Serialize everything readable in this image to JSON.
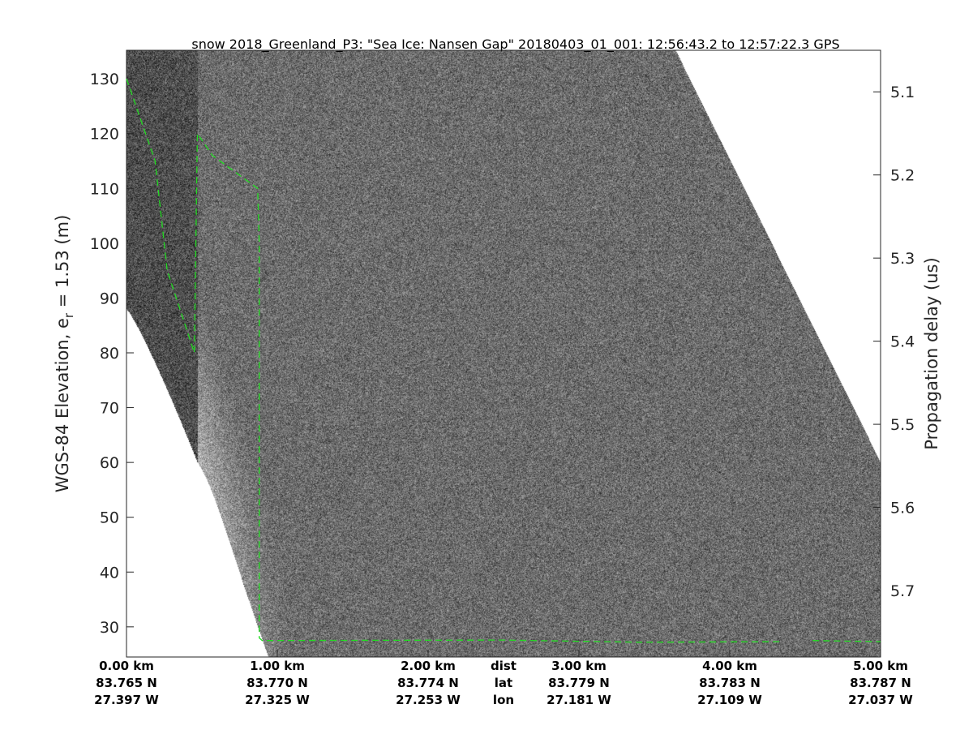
{
  "chart_data": {
    "type": "heatmap",
    "title": "snow 2018_Greenland_P3: \"Sea Ice: Nansen Gap\"  20180403_01_001: 12:56:43.2 to 12:57:22.3 GPS",
    "ylabel": "WGS-84 Elevation, e",
    "ylabel_sub": "r",
    "ylabel_tail": " = 1.53 (m)",
    "y2label": "Propagation delay (us)",
    "xlim": [
      0,
      5
    ],
    "ylim": [
      24.5,
      135.2
    ],
    "y2lim": [
      5.05,
      5.78
    ],
    "yticks": [
      30,
      40,
      50,
      60,
      70,
      80,
      90,
      100,
      110,
      120,
      130
    ],
    "y2ticks": [
      "5.1",
      "5.2",
      "5.3",
      "5.4",
      "5.5",
      "5.6",
      "5.7"
    ],
    "xticks": [
      {
        "dist": "0.00 km",
        "lat": "83.765 N",
        "lon": "27.397 W"
      },
      {
        "dist": "1.00 km",
        "lat": "83.770 N",
        "lon": "27.325 W"
      },
      {
        "dist": "2.00 km",
        "lat": "83.774 N",
        "lon": "27.253 W"
      },
      {
        "dist": "3.00 km",
        "lat": "83.779 N",
        "lon": "27.181 W"
      },
      {
        "dist": "4.00 km",
        "lat": "83.783 N",
        "lon": "27.109 W"
      },
      {
        "dist": "5.00 km",
        "lat": "83.787 N",
        "lon": "27.037 W"
      }
    ],
    "xrow_labels": {
      "dist": "dist",
      "lat": "lat",
      "lon": "lon"
    },
    "colormap": "gray",
    "layer": {
      "color": "#22dd22",
      "style": "dashed",
      "segments": [
        [
          [
            0,
            130
          ],
          [
            0.19,
            115
          ],
          [
            0.27,
            95
          ],
          [
            0.45,
            80
          ],
          [
            0.47,
            120
          ],
          [
            0.57,
            116
          ],
          [
            0.87,
            110
          ],
          [
            0.88,
            100
          ],
          [
            0.88,
            28
          ],
          [
            0.9,
            27.5
          ],
          [
            2.5,
            27.6
          ],
          [
            3.4,
            27.2
          ],
          [
            4.35,
            27.3
          ]
        ],
        [
          [
            4.55,
            27.5
          ],
          [
            5,
            27.3
          ]
        ]
      ]
    }
  }
}
